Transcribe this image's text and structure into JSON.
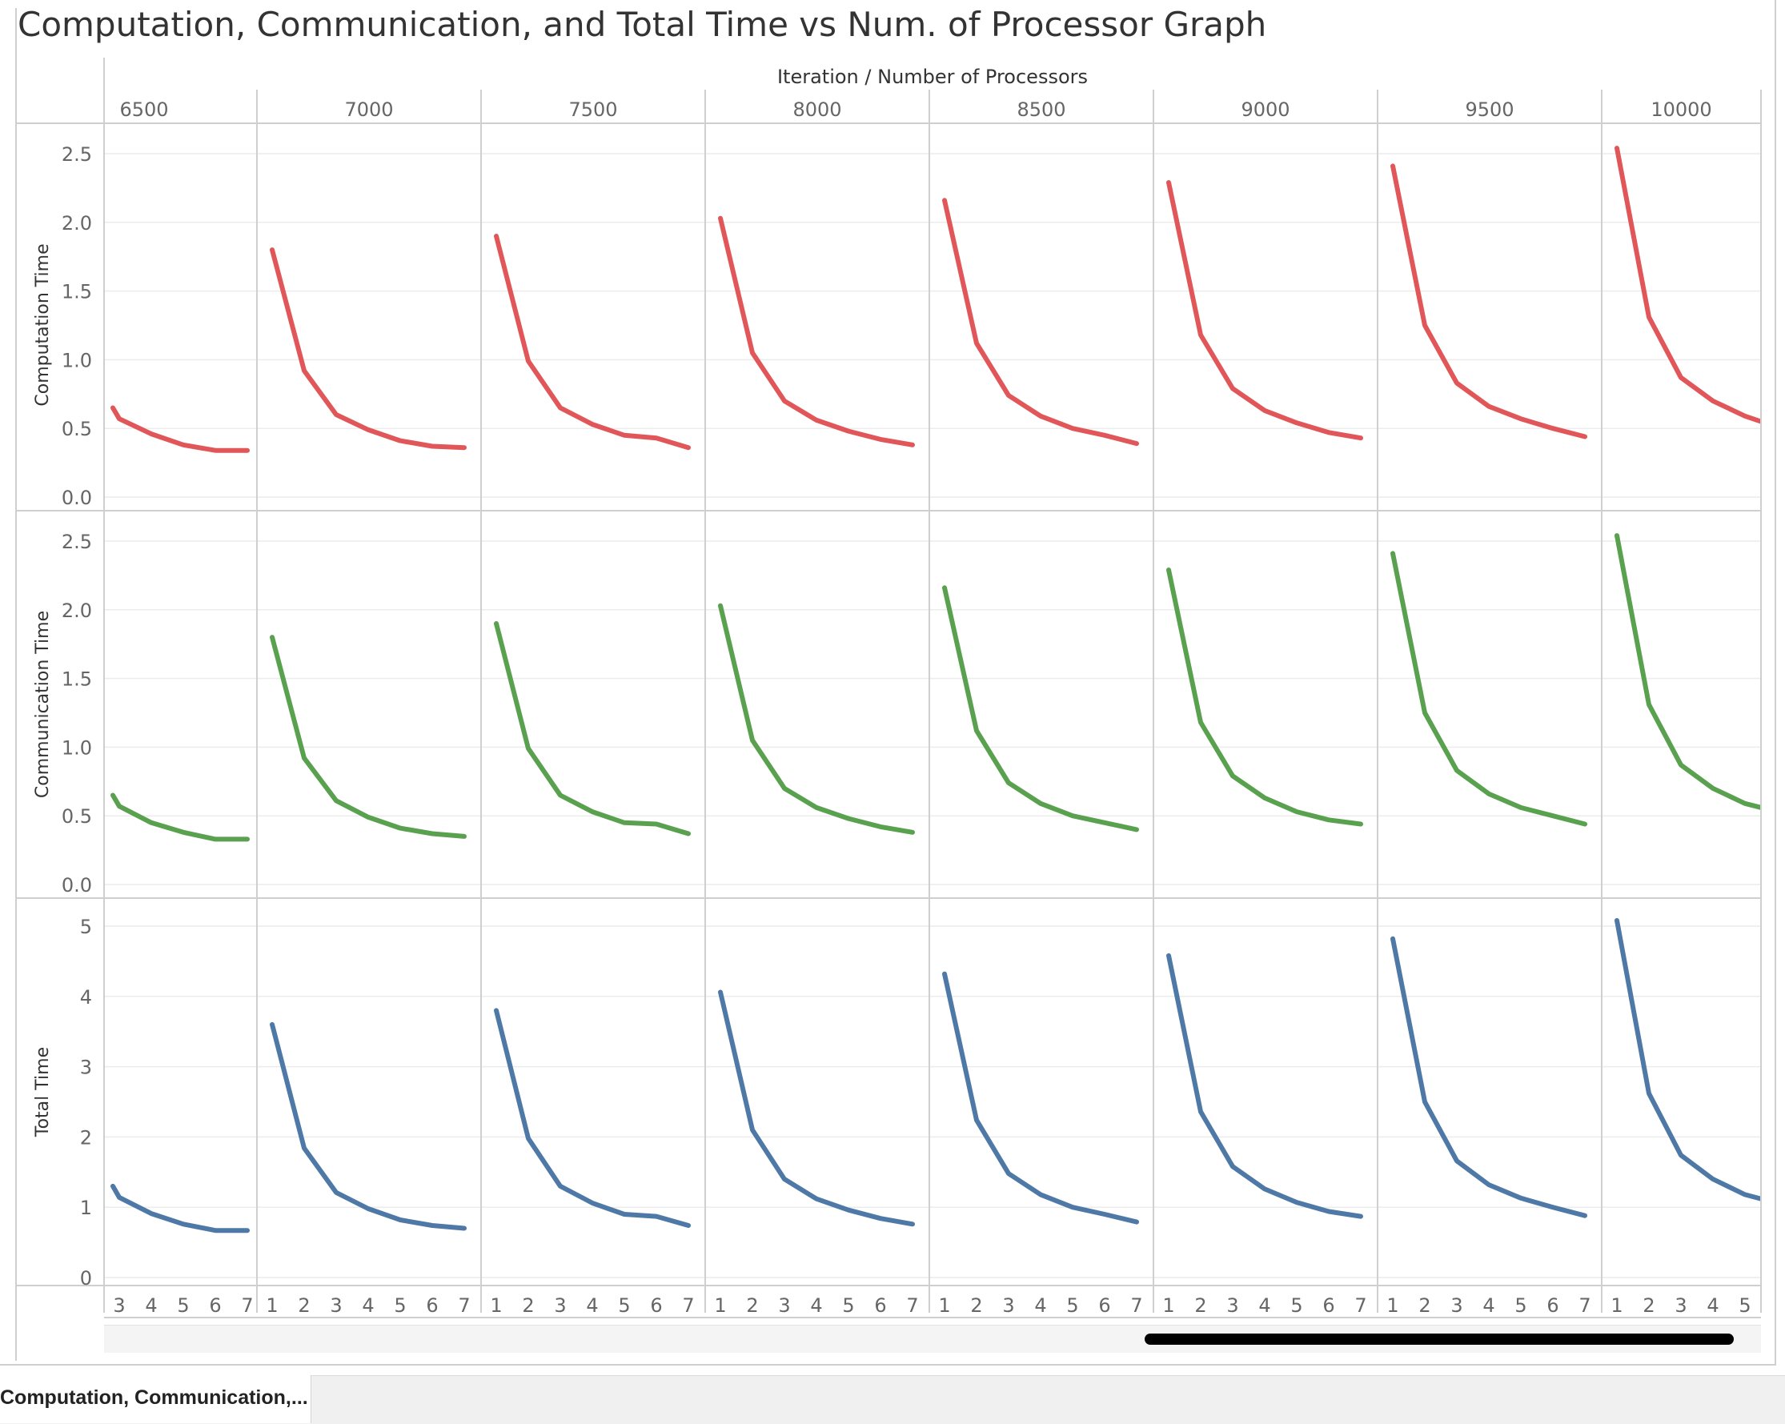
{
  "title": "Computation, Communication, and Total Time vs Num. of Processor Graph",
  "sheet_tab": "Computation, Communication,...",
  "chart_data": {
    "type": "line",
    "column_header": "Iteration  /  Number of Processors",
    "columns": [
      "6500",
      "7000",
      "7500",
      "8000",
      "8500",
      "9000",
      "9500",
      "10000"
    ],
    "x_ticks": [
      [
        "3",
        "4",
        "5",
        "6",
        "7"
      ],
      [
        "1",
        "2",
        "3",
        "4",
        "5",
        "6",
        "7"
      ],
      [
        "1",
        "2",
        "3",
        "4",
        "5",
        "6",
        "7"
      ],
      [
        "1",
        "2",
        "3",
        "4",
        "5",
        "6",
        "7"
      ],
      [
        "1",
        "2",
        "3",
        "4",
        "5",
        "6",
        "7"
      ],
      [
        "1",
        "2",
        "3",
        "4",
        "5",
        "6",
        "7"
      ],
      [
        "1",
        "2",
        "3",
        "4",
        "5",
        "6",
        "7"
      ],
      [
        "1",
        "2",
        "3",
        "4",
        "5"
      ]
    ],
    "rows": [
      {
        "ylabel": "Computation Time",
        "color": "#e15759",
        "yticks": [
          "0.0",
          "0.5",
          "1.0",
          "1.5",
          "2.0",
          "2.5"
        ],
        "ylim": [
          0,
          2.5
        ],
        "series": [
          {
            "x": [
              2.8,
              3,
              4,
              5,
              6,
              7
            ],
            "y": [
              0.65,
              0.57,
              0.46,
              0.38,
              0.34,
              0.34
            ]
          },
          {
            "x": [
              1,
              2,
              3,
              4,
              5,
              6,
              7
            ],
            "y": [
              1.8,
              0.92,
              0.6,
              0.49,
              0.41,
              0.37,
              0.36
            ]
          },
          {
            "x": [
              1,
              2,
              3,
              4,
              5,
              6,
              7
            ],
            "y": [
              1.9,
              0.99,
              0.65,
              0.53,
              0.45,
              0.43,
              0.36
            ]
          },
          {
            "x": [
              1,
              2,
              3,
              4,
              5,
              6,
              7
            ],
            "y": [
              2.03,
              1.05,
              0.7,
              0.56,
              0.48,
              0.42,
              0.38
            ]
          },
          {
            "x": [
              1,
              2,
              3,
              4,
              5,
              6,
              7
            ],
            "y": [
              2.16,
              1.12,
              0.74,
              0.59,
              0.5,
              0.45,
              0.39
            ]
          },
          {
            "x": [
              1,
              2,
              3,
              4,
              5,
              6,
              7
            ],
            "y": [
              2.29,
              1.18,
              0.79,
              0.63,
              0.54,
              0.47,
              0.43
            ]
          },
          {
            "x": [
              1,
              2,
              3,
              4,
              5,
              6,
              7
            ],
            "y": [
              2.41,
              1.25,
              0.83,
              0.66,
              0.57,
              0.5,
              0.44
            ]
          },
          {
            "x": [
              1,
              2,
              3,
              4,
              5,
              5.5
            ],
            "y": [
              2.54,
              1.31,
              0.87,
              0.7,
              0.59,
              0.55
            ]
          }
        ]
      },
      {
        "ylabel": "Communication Time",
        "color": "#59a14f",
        "yticks": [
          "0.0",
          "0.5",
          "1.0",
          "1.5",
          "2.0",
          "2.5"
        ],
        "ylim": [
          0,
          2.5
        ],
        "series": [
          {
            "x": [
              2.8,
              3,
              4,
              5,
              6,
              7
            ],
            "y": [
              0.65,
              0.57,
              0.45,
              0.38,
              0.33,
              0.33
            ]
          },
          {
            "x": [
              1,
              2,
              3,
              4,
              5,
              6,
              7
            ],
            "y": [
              1.8,
              0.92,
              0.61,
              0.49,
              0.41,
              0.37,
              0.35
            ]
          },
          {
            "x": [
              1,
              2,
              3,
              4,
              5,
              6,
              7
            ],
            "y": [
              1.9,
              0.99,
              0.65,
              0.53,
              0.45,
              0.44,
              0.37
            ]
          },
          {
            "x": [
              1,
              2,
              3,
              4,
              5,
              6,
              7
            ],
            "y": [
              2.03,
              1.05,
              0.7,
              0.56,
              0.48,
              0.42,
              0.38
            ]
          },
          {
            "x": [
              1,
              2,
              3,
              4,
              5,
              6,
              7
            ],
            "y": [
              2.16,
              1.12,
              0.74,
              0.59,
              0.5,
              0.45,
              0.4
            ]
          },
          {
            "x": [
              1,
              2,
              3,
              4,
              5,
              6,
              7
            ],
            "y": [
              2.29,
              1.18,
              0.79,
              0.63,
              0.53,
              0.47,
              0.44
            ]
          },
          {
            "x": [
              1,
              2,
              3,
              4,
              5,
              6,
              7
            ],
            "y": [
              2.41,
              1.25,
              0.83,
              0.66,
              0.56,
              0.5,
              0.44
            ]
          },
          {
            "x": [
              1,
              2,
              3,
              4,
              5,
              5.5
            ],
            "y": [
              2.54,
              1.31,
              0.87,
              0.7,
              0.59,
              0.56
            ]
          }
        ]
      },
      {
        "ylabel": "Total Time",
        "color": "#4e79a7",
        "yticks": [
          "0",
          "1",
          "2",
          "3",
          "4",
          "5"
        ],
        "ylim": [
          0,
          5
        ],
        "series": [
          {
            "x": [
              2.8,
              3,
              4,
              5,
              6,
              7
            ],
            "y": [
              1.3,
              1.14,
              0.91,
              0.76,
              0.67,
              0.67
            ]
          },
          {
            "x": [
              1,
              2,
              3,
              4,
              5,
              6,
              7
            ],
            "y": [
              3.6,
              1.84,
              1.21,
              0.98,
              0.82,
              0.74,
              0.7
            ]
          },
          {
            "x": [
              1,
              2,
              3,
              4,
              5,
              6,
              7
            ],
            "y": [
              3.8,
              1.98,
              1.3,
              1.06,
              0.9,
              0.87,
              0.74
            ]
          },
          {
            "x": [
              1,
              2,
              3,
              4,
              5,
              6,
              7
            ],
            "y": [
              4.06,
              2.1,
              1.4,
              1.12,
              0.96,
              0.84,
              0.76
            ]
          },
          {
            "x": [
              1,
              2,
              3,
              4,
              5,
              6,
              7
            ],
            "y": [
              4.32,
              2.24,
              1.48,
              1.18,
              1.0,
              0.9,
              0.79
            ]
          },
          {
            "x": [
              1,
              2,
              3,
              4,
              5,
              6,
              7
            ],
            "y": [
              4.58,
              2.36,
              1.58,
              1.26,
              1.07,
              0.94,
              0.87
            ]
          },
          {
            "x": [
              1,
              2,
              3,
              4,
              5,
              6,
              7
            ],
            "y": [
              4.82,
              2.5,
              1.66,
              1.32,
              1.13,
              1.0,
              0.88
            ]
          },
          {
            "x": [
              1,
              2,
              3,
              4,
              5,
              5.5
            ],
            "y": [
              5.08,
              2.62,
              1.74,
              1.4,
              1.18,
              1.12
            ]
          }
        ]
      }
    ]
  }
}
